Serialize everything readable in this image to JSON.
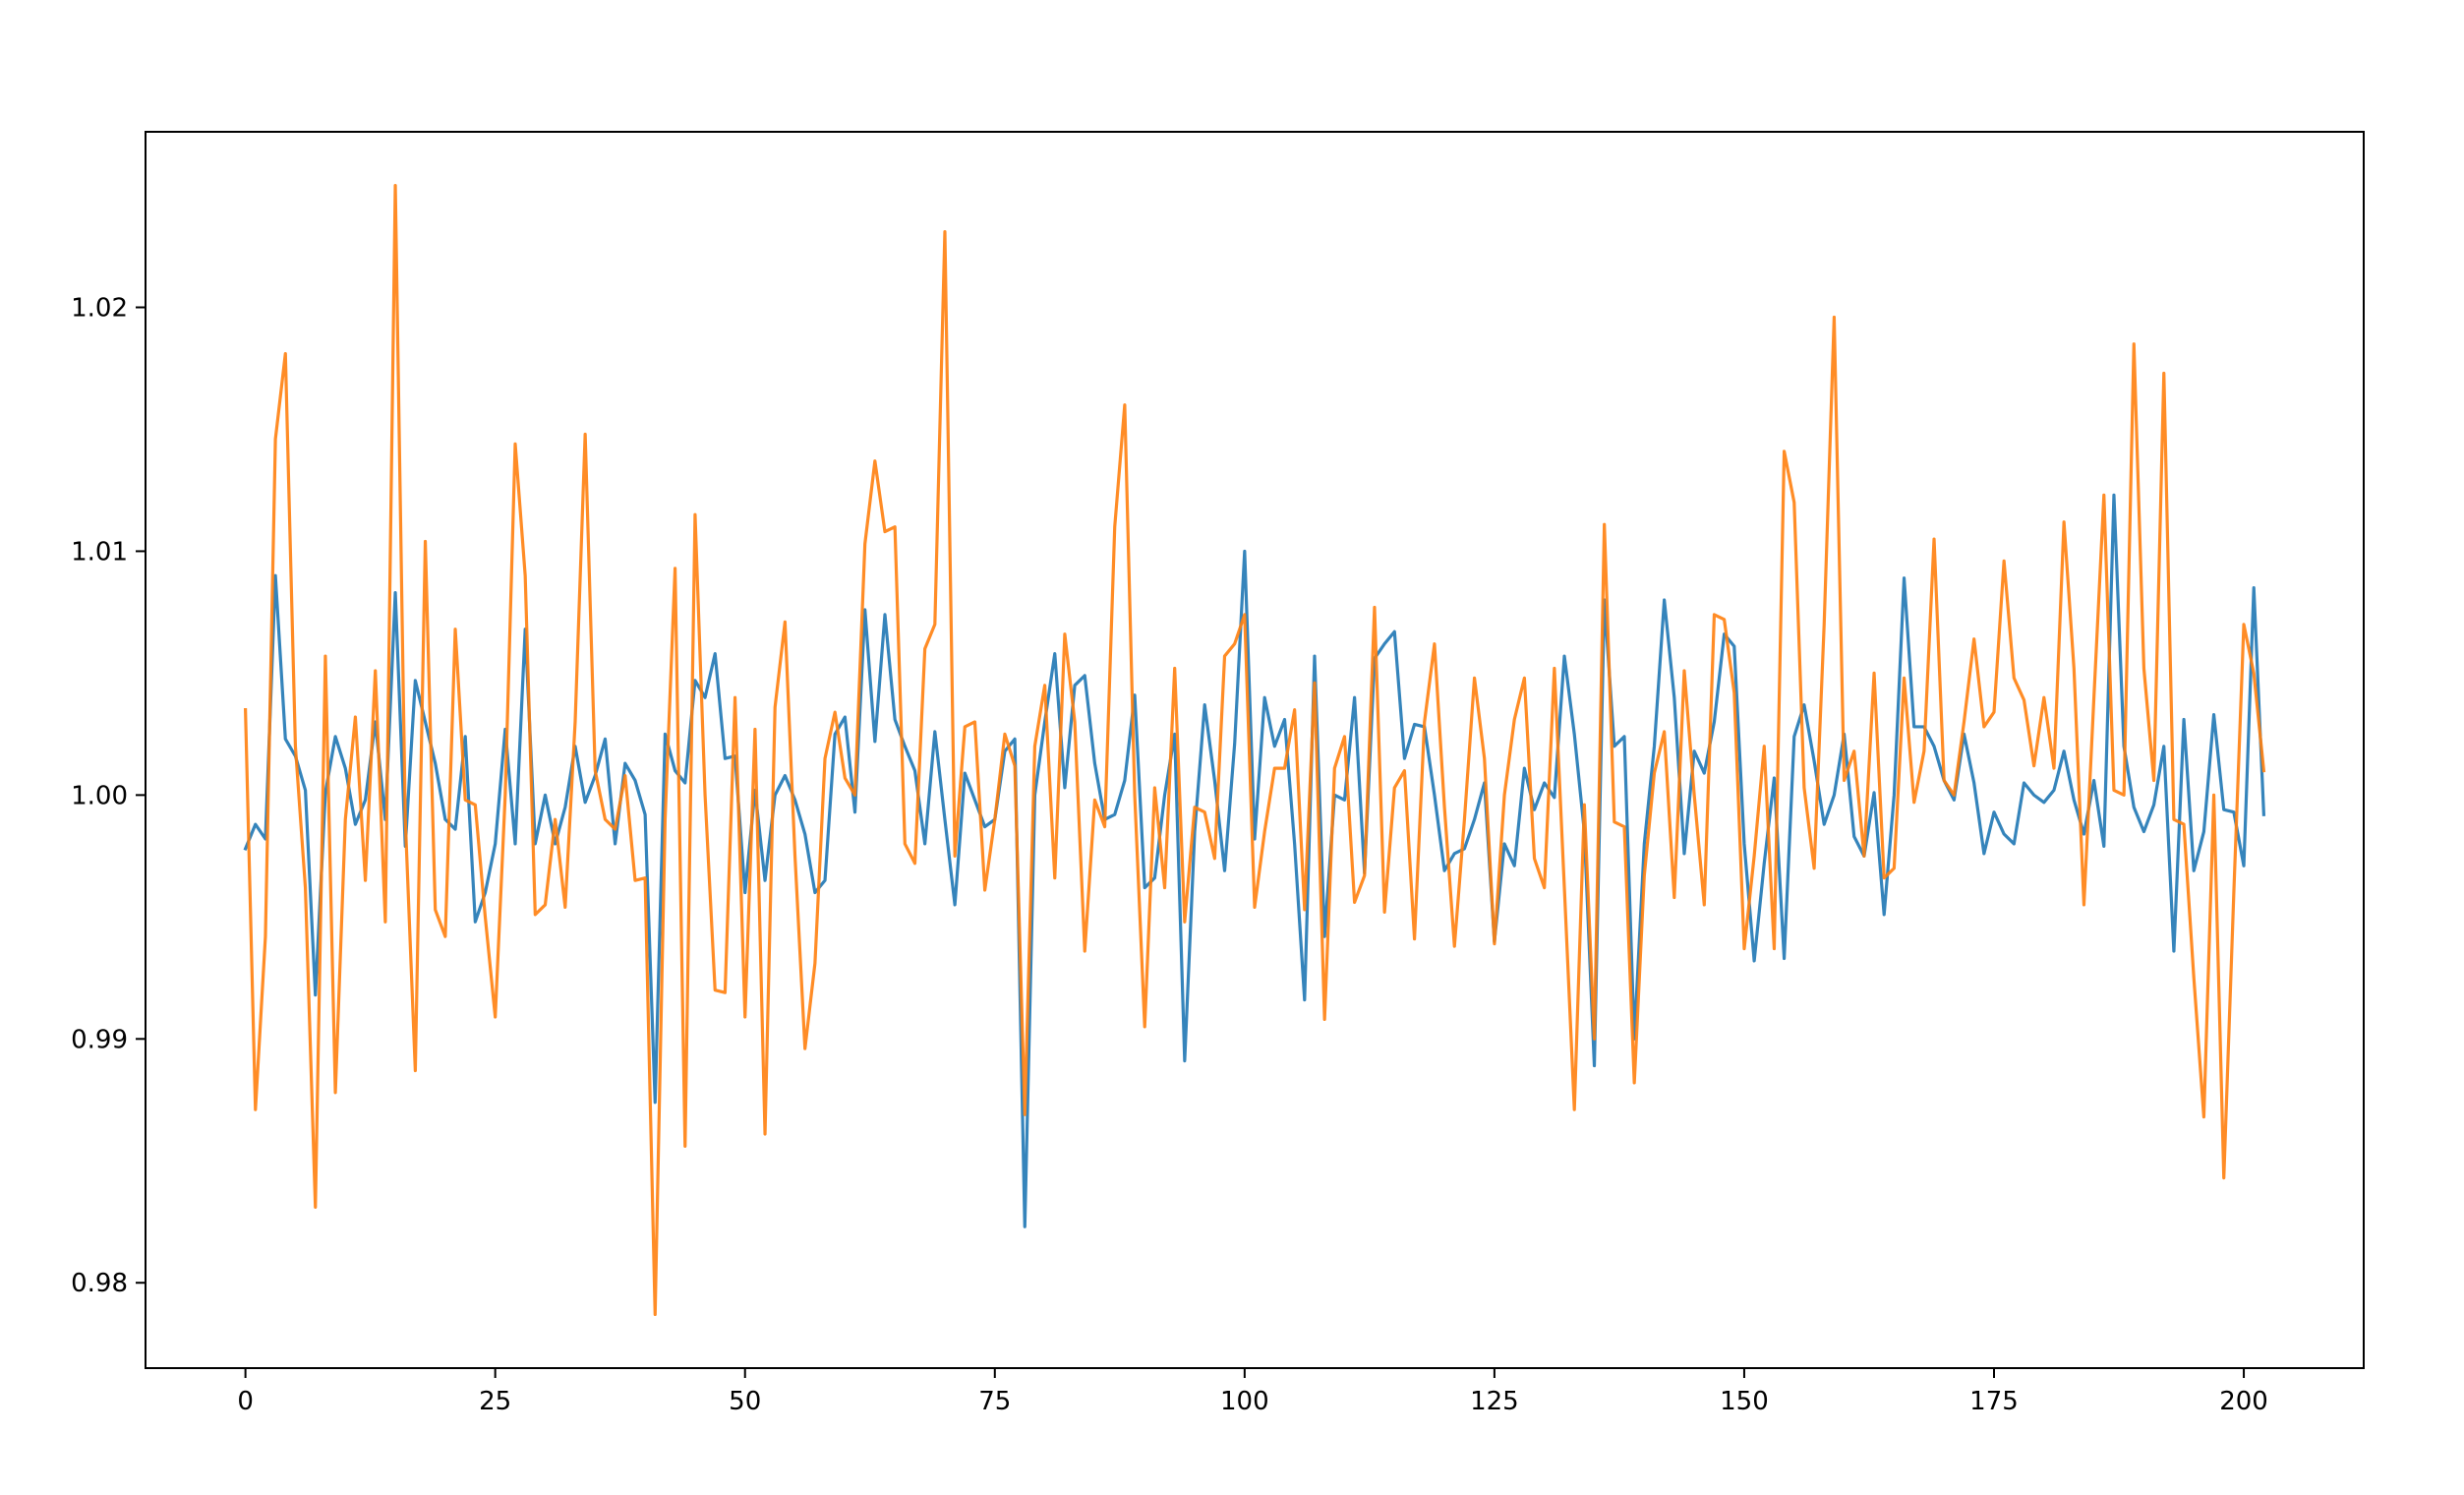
{
  "chart_data": {
    "type": "line",
    "title": "",
    "xlabel": "",
    "ylabel": "",
    "xlim": [
      -10,
      212
    ],
    "ylim": [
      0.9765,
      1.0272
    ],
    "grid": false,
    "legend": "none",
    "x_ticks": [
      0,
      25,
      50,
      75,
      100,
      125,
      150,
      175,
      200
    ],
    "x_tick_labels": [
      "0",
      "25",
      "50",
      "75",
      "100",
      "125",
      "150",
      "175",
      "200"
    ],
    "y_ticks": [
      0.98,
      0.99,
      1.0,
      1.01,
      1.02
    ],
    "y_tick_labels": [
      "0.98",
      "0.99",
      "1.00",
      "1.01",
      "1.02"
    ],
    "series": [
      {
        "color": "#1f77b4",
        "values": [
          0.9978,
          0.9988,
          0.9982,
          1.009,
          1.0023,
          1.0016,
          1.0002,
          0.9918,
          1.0001,
          1.0024,
          1.0011,
          0.9988,
          0.9998,
          1.003,
          0.999,
          1.0083,
          0.9979,
          1.0047,
          1.003,
          1.0013,
          0.999,
          0.9986,
          1.0024,
          0.9948,
          0.996,
          0.998,
          1.0027,
          0.998,
          1.0068,
          0.998,
          1.0,
          0.998,
          0.9995,
          1.002,
          0.9997,
          1.0008,
          1.0023,
          0.998,
          1.0013,
          1.0006,
          0.9992,
          0.9874,
          1.0025,
          1.001,
          1.0005,
          1.0047,
          1.004,
          1.0058,
          1.0015,
          1.0016,
          0.996,
          1.0002,
          0.9965,
          1.0,
          1.0008,
          0.9998,
          0.9984,
          0.996,
          0.9965,
          1.0025,
          1.0032,
          0.9993,
          1.0076,
          1.0022,
          1.0074,
          1.0031,
          1.002,
          1.001,
          0.998,
          1.0026,
          0.999,
          0.9955,
          1.0009,
          0.9998,
          0.9987,
          0.999,
          1.0018,
          1.0023,
          0.9823,
          1.0,
          1.003,
          1.0058,
          1.0003,
          1.0045,
          1.0049,
          1.0013,
          0.999,
          0.9992,
          1.0006,
          1.0041,
          0.9962,
          0.9966,
          1.0,
          1.0025,
          0.9891,
          0.9985,
          1.0037,
          1.0006,
          0.9969,
          1.0021,
          1.01,
          0.9982,
          1.004,
          1.002,
          1.0031,
          0.998,
          0.9916,
          1.0057,
          0.9942,
          1.0,
          0.9998,
          1.004,
          0.9968,
          1.0056,
          1.0062,
          1.0067,
          1.0015,
          1.0029,
          1.0028,
          1.0,
          0.9969,
          0.9976,
          0.9978,
          0.999,
          1.0005,
          0.994,
          0.998,
          0.9971,
          1.0011,
          0.9994,
          1.0005,
          0.9999,
          1.0057,
          1.0025,
          0.9985,
          0.9889,
          1.008,
          1.002,
          1.0024,
          0.99,
          0.998,
          1.002,
          1.008,
          1.004,
          0.9976,
          1.0018,
          1.0009,
          1.003,
          1.0066,
          1.0061,
          0.998,
          0.9932,
          0.9972,
          1.0007,
          0.9933,
          1.0024,
          1.0037,
          1.0014,
          0.9988,
          1.0,
          1.0025,
          0.9983,
          0.9975,
          1.0001,
          0.9951,
          1.0,
          1.0089,
          1.0028,
          1.0028,
          1.002,
          1.0006,
          0.9998,
          1.0025,
          1.0005,
          0.9976,
          0.9993,
          0.9984,
          0.998,
          1.0005,
          1.0,
          0.9997,
          1.0002,
          1.0018,
          0.9998,
          0.9984,
          1.0006,
          0.9979,
          1.0123,
          1.002,
          0.9995,
          0.9985,
          0.9996,
          1.002,
          0.9936,
          1.0031,
          0.9969,
          0.9985,
          1.0033,
          0.9994,
          0.9993,
          0.9971,
          1.0085,
          0.9992
        ]
      },
      {
        "color": "#ff7f0e",
        "values": [
          1.0035,
          0.9871,
          0.9942,
          1.0146,
          1.0181,
          1.002,
          0.9962,
          0.9831,
          1.0057,
          0.9878,
          0.999,
          1.0032,
          0.9965,
          1.0051,
          0.9948,
          1.025,
          0.999,
          0.9887,
          1.0104,
          0.9953,
          0.9942,
          1.0068,
          0.9998,
          0.9996,
          0.995,
          0.9909,
          1.0,
          1.0144,
          1.009,
          0.9951,
          0.9955,
          0.999,
          0.9954,
          1.003,
          1.0148,
          1.001,
          0.999,
          0.9986,
          1.0008,
          0.9965,
          0.9966,
          0.9787,
          0.999,
          1.0093,
          0.9856,
          1.0115,
          1.0,
          0.992,
          0.9919,
          1.004,
          0.9909,
          1.0027,
          0.9861,
          1.0036,
          1.0071,
          0.9975,
          0.9896,
          0.9931,
          1.0015,
          1.0034,
          1.0007,
          1.0,
          1.0103,
          1.0137,
          1.0108,
          1.011,
          0.998,
          0.9972,
          1.006,
          1.007,
          1.0231,
          0.9975,
          1.0028,
          1.003,
          0.9961,
          0.999,
          1.0025,
          1.0012,
          0.9869,
          1.002,
          1.0045,
          0.9966,
          1.0066,
          1.003,
          0.9936,
          0.9998,
          0.9987,
          1.011,
          1.016,
          1.0,
          0.9905,
          1.0003,
          0.9962,
          1.0052,
          0.9948,
          0.9995,
          0.9993,
          0.9974,
          1.0057,
          1.0062,
          1.0074,
          0.9954,
          0.9985,
          1.0011,
          1.0011,
          1.0035,
          0.9953,
          1.0046,
          0.9908,
          1.0011,
          1.0024,
          0.9956,
          0.9967,
          1.0077,
          0.9952,
          1.0003,
          1.001,
          0.9941,
          1.003,
          1.0062,
          0.9995,
          0.9938,
          0.999,
          1.0048,
          1.0015,
          0.9939,
          1.0,
          1.0031,
          1.0048,
          0.9974,
          0.9962,
          1.0052,
          0.9962,
          0.9871,
          0.9996,
          0.99,
          1.0111,
          0.9989,
          0.9987,
          0.9882,
          0.9967,
          1.0009,
          1.0026,
          0.9958,
          1.0051,
          1.0,
          0.9955,
          1.0074,
          1.0072,
          1.0042,
          0.9937,
          0.9975,
          1.002,
          0.9937,
          1.0141,
          1.012,
          1.0003,
          0.997,
          1.007,
          1.0196,
          1.0006,
          1.0018,
          0.9975,
          1.005,
          0.9966,
          0.997,
          1.0048,
          0.9997,
          1.0018,
          1.0105,
          1.0006,
          1.0,
          1.003,
          1.0064,
          1.0028,
          1.0034,
          1.0096,
          1.0048,
          1.0039,
          1.0012,
          1.004,
          1.0011,
          1.0112,
          1.0052,
          0.9955,
          1.004,
          1.0123,
          1.0002,
          1.0,
          1.0185,
          1.0052,
          1.0006,
          1.0173,
          0.999,
          0.9988,
          0.9925,
          0.9868,
          1.0,
          0.9843,
          0.996,
          1.007,
          1.005,
          1.001
        ]
      }
    ]
  }
}
